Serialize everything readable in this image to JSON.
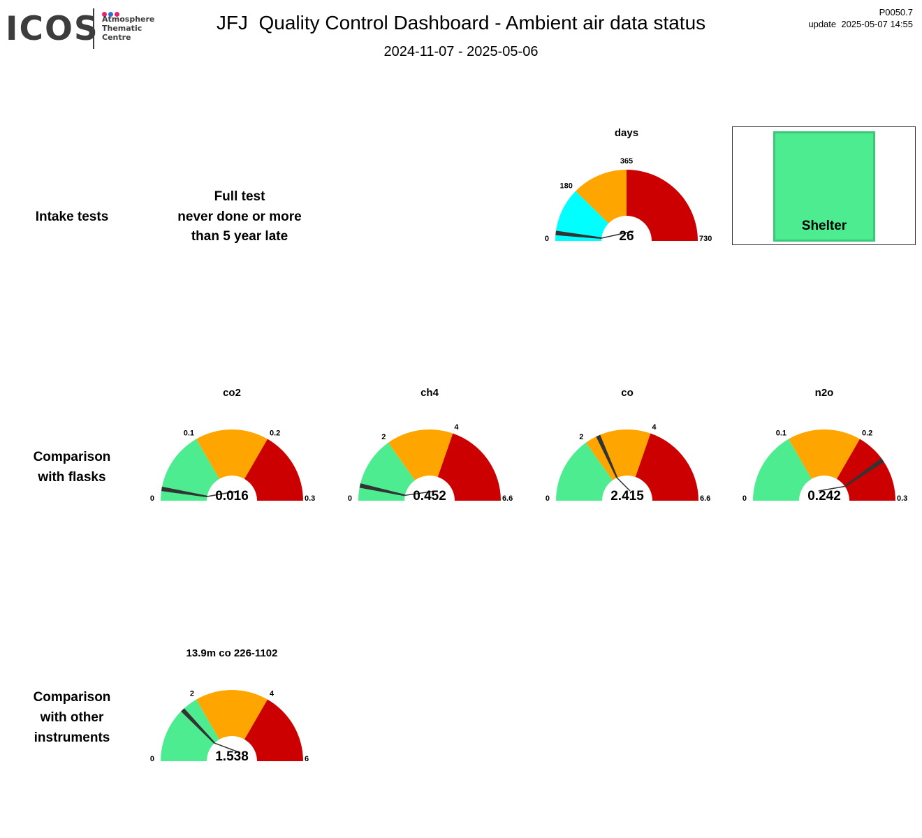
{
  "logo": {
    "text": "ICOS",
    "subtitle": "Atmosphere\nThematic\nCentre",
    "dot_colors": [
      "#e5246f",
      "#2a6fd6",
      "#e5246f"
    ]
  },
  "header": {
    "title": "JFJ  Quality Control Dashboard - Ambient air data status",
    "date_range": "2024-11-07 - 2025-05-06",
    "page_id": "P0050.7",
    "update": "update  2025-05-07 14:55"
  },
  "rows": {
    "intake": "Intake tests",
    "flasks": "Comparison\nwith flasks",
    "instruments": "Comparison\nwith other\ninstruments"
  },
  "intake_status": "Full test\nnever done or more\nthan 5 year late",
  "shelter": {
    "label": "Shelter",
    "color": "#4dec90"
  },
  "colors": {
    "green": "#4dec90",
    "orange": "#ffa500",
    "red": "#cc0000",
    "cyan": "#00ffff",
    "needle": "#333333"
  },
  "chart_data": [
    {
      "type": "gauge",
      "id": "days",
      "title": "days",
      "min": 0,
      "max": 730,
      "value": 26,
      "value_label": "26",
      "bands": [
        {
          "from": 0,
          "to": 180,
          "color": "#00ffff"
        },
        {
          "from": 180,
          "to": 365,
          "color": "#ffa500"
        },
        {
          "from": 365,
          "to": 730,
          "color": "#cc0000"
        }
      ],
      "ticks": [
        {
          "value": 0,
          "label": "0"
        },
        {
          "value": 180,
          "label": "180"
        },
        {
          "value": 365,
          "label": "365"
        },
        {
          "value": 730,
          "label": "730"
        }
      ]
    },
    {
      "type": "gauge",
      "id": "co2",
      "title": "co2",
      "min": 0,
      "max": 0.3,
      "value": 0.016,
      "value_label": "0.016",
      "bands": [
        {
          "from": 0,
          "to": 0.1,
          "color": "#4dec90"
        },
        {
          "from": 0.1,
          "to": 0.2,
          "color": "#ffa500"
        },
        {
          "from": 0.2,
          "to": 0.3,
          "color": "#cc0000"
        }
      ],
      "ticks": [
        {
          "value": 0,
          "label": "0"
        },
        {
          "value": 0.1,
          "label": "0.1"
        },
        {
          "value": 0.2,
          "label": "0.2"
        },
        {
          "value": 0.3,
          "label": "0.3"
        }
      ]
    },
    {
      "type": "gauge",
      "id": "ch4",
      "title": "ch4",
      "min": 0,
      "max": 6.6,
      "value": 0.452,
      "value_label": "0.452",
      "bands": [
        {
          "from": 0,
          "to": 2,
          "color": "#4dec90"
        },
        {
          "from": 2,
          "to": 4,
          "color": "#ffa500"
        },
        {
          "from": 4,
          "to": 6.6,
          "color": "#cc0000"
        }
      ],
      "ticks": [
        {
          "value": 0,
          "label": "0"
        },
        {
          "value": 2,
          "label": "2"
        },
        {
          "value": 4,
          "label": "4"
        },
        {
          "value": 6.6,
          "label": "6.6"
        }
      ]
    },
    {
      "type": "gauge",
      "id": "co",
      "title": "co",
      "min": 0,
      "max": 6.6,
      "value": 2.415,
      "value_label": "2.415",
      "bands": [
        {
          "from": 0,
          "to": 2,
          "color": "#4dec90"
        },
        {
          "from": 2,
          "to": 4,
          "color": "#ffa500"
        },
        {
          "from": 4,
          "to": 6.6,
          "color": "#cc0000"
        }
      ],
      "ticks": [
        {
          "value": 0,
          "label": "0"
        },
        {
          "value": 2,
          "label": "2"
        },
        {
          "value": 4,
          "label": "4"
        },
        {
          "value": 6.6,
          "label": "6.6"
        }
      ]
    },
    {
      "type": "gauge",
      "id": "n2o",
      "title": "n2o",
      "min": 0,
      "max": 0.3,
      "value": 0.242,
      "value_label": "0.242",
      "bands": [
        {
          "from": 0,
          "to": 0.1,
          "color": "#4dec90"
        },
        {
          "from": 0.1,
          "to": 0.2,
          "color": "#ffa500"
        },
        {
          "from": 0.2,
          "to": 0.3,
          "color": "#cc0000"
        }
      ],
      "ticks": [
        {
          "value": 0,
          "label": "0"
        },
        {
          "value": 0.1,
          "label": "0.1"
        },
        {
          "value": 0.2,
          "label": "0.2"
        },
        {
          "value": 0.3,
          "label": "0.3"
        }
      ]
    },
    {
      "type": "gauge",
      "id": "inst",
      "title": "13.9m co 226-1102",
      "min": 0,
      "max": 6,
      "value": 1.538,
      "value_label": "1.538",
      "bands": [
        {
          "from": 0,
          "to": 2,
          "color": "#4dec90"
        },
        {
          "from": 2,
          "to": 4,
          "color": "#ffa500"
        },
        {
          "from": 4,
          "to": 6,
          "color": "#cc0000"
        }
      ],
      "ticks": [
        {
          "value": 0,
          "label": "0"
        },
        {
          "value": 2,
          "label": "2"
        },
        {
          "value": 4,
          "label": "4"
        },
        {
          "value": 6,
          "label": "6"
        }
      ]
    }
  ]
}
